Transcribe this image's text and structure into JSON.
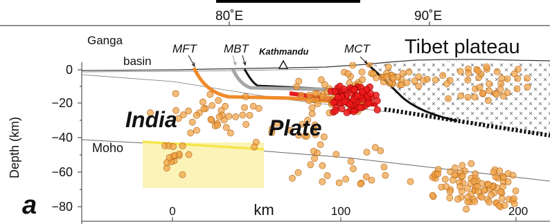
{
  "panel_label": "a",
  "top_axis": {
    "ticks": [
      "80˚E",
      "90˚E"
    ]
  },
  "y_axis": {
    "label": "Depth (km)",
    "ticks": [
      "0",
      "−20",
      "−40",
      "−60",
      "−80"
    ]
  },
  "x_axis": {
    "label": "km",
    "ticks": [
      "0",
      "100",
      "200"
    ]
  },
  "labels": {
    "ganga": "Ganga",
    "basin": "basin",
    "mft": "MFT",
    "mbt": "MBT",
    "kathmandu": "Kathmandu",
    "mct": "MCT",
    "tibet": "Tibet plateau",
    "india": "India",
    "plate": "Plate",
    "moho": "Moho"
  },
  "colors": {
    "mft_thrust": "#f08a2a",
    "mbt_thrust": "#a6a6a6",
    "rupture": "#e41a1c",
    "event_small": "#f0a040",
    "event_large": "#ee1a1a",
    "moho_highlight": "#f5e64a",
    "moho_box": "#fbf3b8",
    "main_thrust": "#111111"
  }
}
